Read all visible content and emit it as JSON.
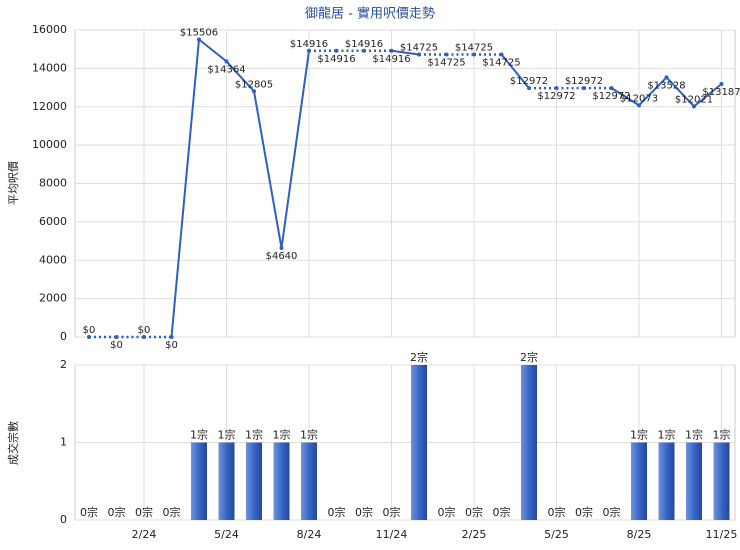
{
  "chart_data": [
    {
      "type": "line",
      "title": "御龍居 - 實用呎價走勢",
      "y_label": "平均呎價",
      "color": "#2f5fc4",
      "values": [
        0,
        0,
        0,
        0,
        15506,
        14364,
        12805,
        4640,
        14916,
        14916,
        14916,
        14916,
        14725,
        14725,
        14725,
        14725,
        12972,
        12972,
        12972,
        12972,
        12073,
        13528,
        12021,
        13187
      ],
      "value_labels": [
        "$0",
        "$0",
        "$0",
        "$0",
        "$15506",
        "$14364",
        "$12805",
        "$4640",
        "$14916",
        "$14916",
        "$14916",
        "$14916",
        "$14725",
        "$14725",
        "$14725",
        "$14725",
        "$12972",
        "$12972",
        "$12972",
        "$12972",
        "$12073",
        "$13528",
        "$12021",
        "$13187"
      ],
      "ylim": [
        0,
        16000
      ],
      "yticks": [
        0,
        2000,
        4000,
        6000,
        8000,
        10000,
        12000,
        14000,
        16000
      ],
      "grid": true
    },
    {
      "type": "bar",
      "y_label": "成交宗數",
      "color": "#3a66c8",
      "categories": [
        null,
        null,
        "2/24",
        null,
        null,
        "5/24",
        null,
        null,
        "8/24",
        null,
        null,
        "11/24",
        null,
        null,
        "2/25",
        null,
        null,
        "5/25",
        null,
        null,
        "8/25",
        null,
        null,
        "11/25"
      ],
      "values": [
        0,
        0,
        0,
        0,
        1,
        1,
        1,
        1,
        1,
        0,
        0,
        0,
        2,
        0,
        0,
        0,
        2,
        0,
        0,
        0,
        1,
        1,
        1,
        1
      ],
      "value_labels": [
        "0宗",
        "0宗",
        "0宗",
        "0宗",
        "1宗",
        "1宗",
        "1宗",
        "1宗",
        "1宗",
        "0宗",
        "0宗",
        "0宗",
        "2宗",
        "0宗",
        "0宗",
        "0宗",
        "2宗",
        "0宗",
        "0宗",
        "0宗",
        "1宗",
        "1宗",
        "1宗",
        "1宗"
      ],
      "ylim": [
        0,
        2
      ],
      "yticks": [
        0,
        1,
        2
      ],
      "grid": true
    }
  ]
}
